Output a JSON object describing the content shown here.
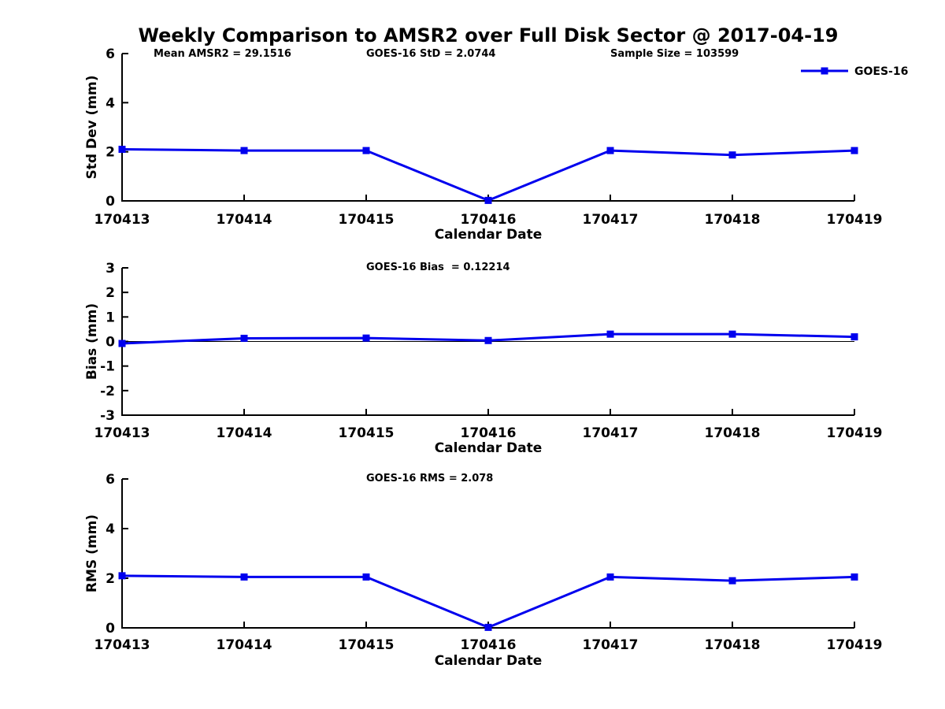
{
  "chart_data": [
    {
      "type": "line",
      "title": "Weekly Comparison to AMSR2 over Full Disk Sector @ 2017-04-19",
      "annotations": [
        "Mean AMSR2 = 29.1516",
        "GOES-16 StD = 2.0744",
        "Sample Size = 103599"
      ],
      "xlabel": "Calendar Date",
      "ylabel": "Std Dev (mm)",
      "ylim": [
        0,
        6
      ],
      "yticks": [
        0,
        2,
        4,
        6
      ],
      "grid": false,
      "categories": [
        "170413",
        "170414",
        "170415",
        "170416",
        "170417",
        "170418",
        "170419"
      ],
      "series": [
        {
          "name": "GOES-16",
          "color": "#0000ee",
          "marker": "square",
          "values": [
            2.1,
            2.05,
            2.05,
            0.02,
            2.05,
            1.87,
            2.05
          ]
        }
      ],
      "legend": {
        "label": "GOES-16",
        "position": "top-right",
        "visible": true
      }
    },
    {
      "type": "line",
      "annotations": [
        "GOES-16 Bias  = 0.12214"
      ],
      "xlabel": "Calendar Date",
      "ylabel": "Bias (mm)",
      "ylim": [
        -3,
        3
      ],
      "yticks": [
        -3,
        -2,
        -1,
        0,
        1,
        2,
        3
      ],
      "zero_line": true,
      "grid": false,
      "categories": [
        "170413",
        "170414",
        "170415",
        "170416",
        "170417",
        "170418",
        "170419"
      ],
      "series": [
        {
          "name": "GOES-16",
          "color": "#0000ee",
          "marker": "square",
          "values": [
            -0.08,
            0.13,
            0.14,
            0.04,
            0.3,
            0.3,
            0.19
          ]
        }
      ],
      "legend": {
        "visible": false
      }
    },
    {
      "type": "line",
      "annotations": [
        "GOES-16 RMS = 2.078"
      ],
      "xlabel": "Calendar Date",
      "ylabel": "RMS (mm)",
      "ylim": [
        0,
        6
      ],
      "yticks": [
        0,
        2,
        4,
        6
      ],
      "grid": false,
      "categories": [
        "170413",
        "170414",
        "170415",
        "170416",
        "170417",
        "170418",
        "170419"
      ],
      "series": [
        {
          "name": "GOES-16",
          "color": "#0000ee",
          "marker": "square",
          "values": [
            2.1,
            2.05,
            2.05,
            0.02,
            2.05,
            1.9,
            2.05
          ]
        }
      ],
      "legend": {
        "visible": false
      }
    }
  ]
}
